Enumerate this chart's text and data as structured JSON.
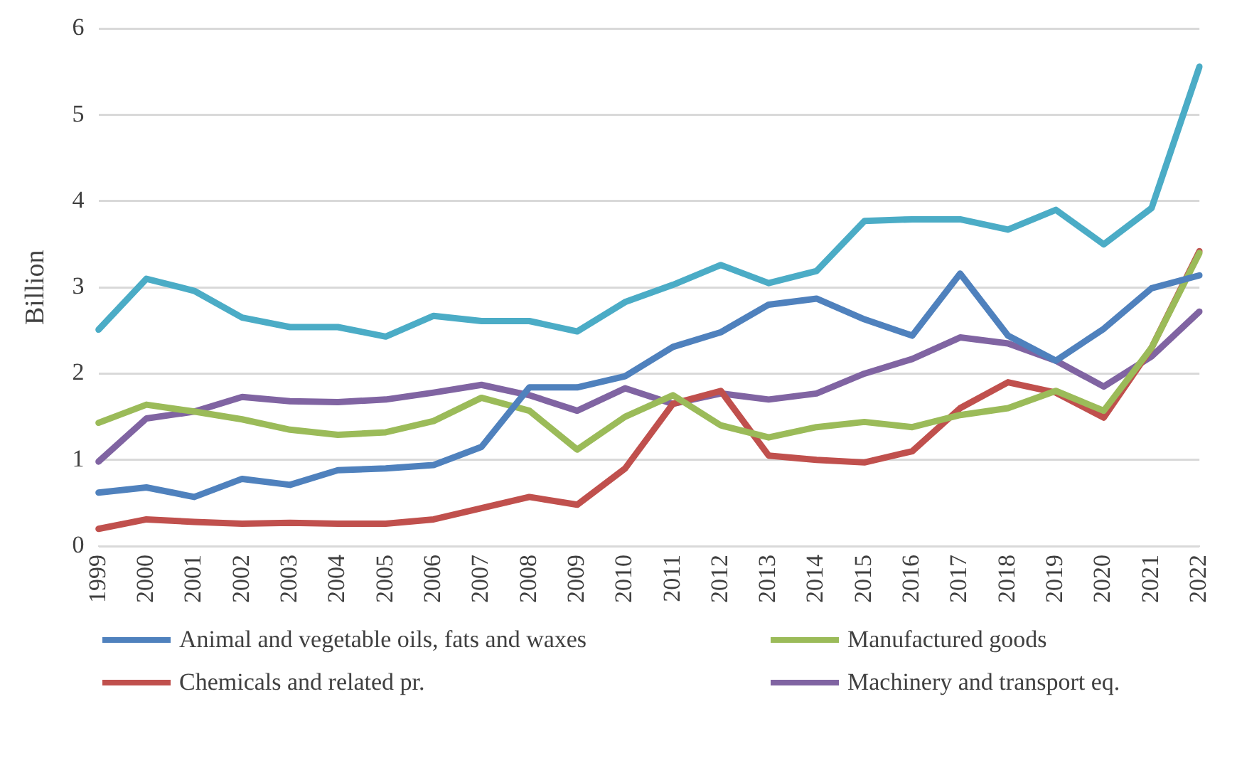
{
  "chart_data": {
    "type": "line",
    "ylabel": "Billion",
    "categories": [
      "1999",
      "2000",
      "2001",
      "2002",
      "2003",
      "2004",
      "2005",
      "2006",
      "2007",
      "2008",
      "2009",
      "2010",
      "2011",
      "2012",
      "2013",
      "2014",
      "2015",
      "2016",
      "2017",
      "2018",
      "2019",
      "2020",
      "2021",
      "2022"
    ],
    "series": [
      {
        "name": "Animal and vegetable oils, fats and waxes",
        "color": "#4f81bd",
        "values": [
          0.62,
          0.68,
          0.57,
          0.78,
          0.71,
          0.88,
          0.9,
          0.94,
          1.15,
          1.84,
          1.84,
          1.97,
          2.31,
          2.48,
          2.8,
          2.87,
          2.63,
          2.44,
          3.16,
          2.44,
          2.15,
          2.52,
          2.99,
          3.14
        ]
      },
      {
        "name": "Manufactured goods",
        "color": "#9bbb59",
        "values": [
          1.43,
          1.64,
          1.56,
          1.47,
          1.35,
          1.29,
          1.32,
          1.45,
          1.72,
          1.57,
          1.12,
          1.5,
          1.75,
          1.4,
          1.26,
          1.38,
          1.44,
          1.38,
          1.52,
          1.6,
          1.8,
          1.57,
          2.3,
          3.4
        ]
      },
      {
        "name": "Chemicals and related pr.",
        "color": "#c0504d",
        "values": [
          0.2,
          0.31,
          0.28,
          0.26,
          0.27,
          0.26,
          0.26,
          0.31,
          0.44,
          0.57,
          0.48,
          0.9,
          1.65,
          1.8,
          1.05,
          1.0,
          0.97,
          1.1,
          1.6,
          1.9,
          1.78,
          1.49,
          2.3,
          3.42
        ]
      },
      {
        "name": "Machinery and transport eq.",
        "color": "#8064a2",
        "values": [
          0.98,
          1.48,
          1.56,
          1.73,
          1.68,
          1.67,
          1.7,
          1.78,
          1.87,
          1.75,
          1.57,
          1.83,
          1.65,
          1.77,
          1.7,
          1.77,
          2.0,
          2.17,
          2.42,
          2.35,
          2.15,
          1.85,
          2.2,
          2.72
        ]
      },
      {
        "color": "#4bacc6",
        "values": [
          2.51,
          3.1,
          2.96,
          2.65,
          2.54,
          2.54,
          2.43,
          2.67,
          2.61,
          2.61,
          2.49,
          2.83,
          3.03,
          3.26,
          3.05,
          3.19,
          3.77,
          3.79,
          3.79,
          3.67,
          3.9,
          3.5,
          3.92,
          5.56
        ]
      }
    ],
    "ylim": [
      0,
      6
    ],
    "yticks": [
      0,
      1,
      2,
      3,
      4,
      5,
      6
    ],
    "grid": "y",
    "legend": "bottom",
    "marker": "none",
    "line_style": "solid"
  }
}
